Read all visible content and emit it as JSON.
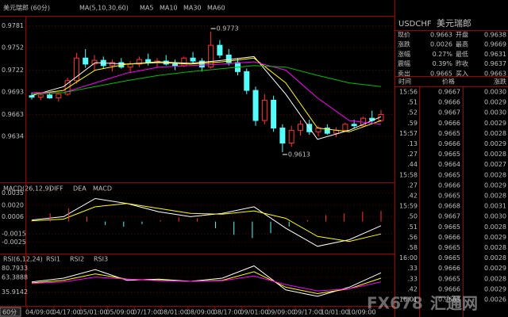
{
  "main": {
    "title": "美元瑞郎 (60分)",
    "indicator": "MA(5,10,30,60)",
    "ylim": [
      0.9575,
      0.9792
    ],
    "yticks": [
      0.9781,
      0.9752,
      0.9722,
      0.9693,
      0.9663,
      0.9634
    ],
    "up_color": "#ff3232",
    "down_color": "#54fcfc",
    "candles": [
      [
        0.9688,
        0.9692,
        0.9683,
        0.9686
      ],
      [
        0.9686,
        0.969,
        0.9682,
        0.9689
      ],
      [
        0.9689,
        0.9693,
        0.9684,
        0.9685
      ],
      [
        0.9685,
        0.9691,
        0.968,
        0.969
      ],
      [
        0.969,
        0.9712,
        0.9688,
        0.9708
      ],
      [
        0.9708,
        0.9745,
        0.9704,
        0.9738
      ],
      [
        0.9738,
        0.975,
        0.9725,
        0.973
      ],
      [
        0.973,
        0.9742,
        0.9722,
        0.9735
      ],
      [
        0.9735,
        0.974,
        0.9724,
        0.9728
      ],
      [
        0.9728,
        0.9736,
        0.972,
        0.9732
      ],
      [
        0.9732,
        0.9738,
        0.9724,
        0.9726
      ],
      [
        0.9726,
        0.9734,
        0.9718,
        0.973
      ],
      [
        0.973,
        0.974,
        0.9726,
        0.9736
      ],
      [
        0.9736,
        0.9744,
        0.9728,
        0.9732
      ],
      [
        0.9732,
        0.9738,
        0.9725,
        0.9734
      ],
      [
        0.9734,
        0.9742,
        0.9728,
        0.973
      ],
      [
        0.973,
        0.9736,
        0.9722,
        0.9728
      ],
      [
        0.9728,
        0.974,
        0.9726,
        0.9738
      ],
      [
        0.9738,
        0.9746,
        0.973,
        0.9734
      ],
      [
        0.9734,
        0.9738,
        0.972,
        0.9726
      ],
      [
        0.9726,
        0.9773,
        0.9724,
        0.9755
      ],
      [
        0.9755,
        0.9762,
        0.9738,
        0.9742
      ],
      [
        0.9742,
        0.975,
        0.9728,
        0.9732
      ],
      [
        0.9732,
        0.9738,
        0.9715,
        0.972
      ],
      [
        0.972,
        0.9724,
        0.969,
        0.9695
      ],
      [
        0.9695,
        0.97,
        0.9648,
        0.9655
      ],
      [
        0.9655,
        0.969,
        0.965,
        0.9682
      ],
      [
        0.9682,
        0.9688,
        0.964,
        0.9645
      ],
      [
        0.9645,
        0.965,
        0.9613,
        0.9625
      ],
      [
        0.9625,
        0.9648,
        0.962,
        0.9642
      ],
      [
        0.9642,
        0.9655,
        0.9635,
        0.965
      ],
      [
        0.965,
        0.9656,
        0.9636,
        0.964
      ],
      [
        0.964,
        0.9648,
        0.9634,
        0.9645
      ],
      [
        0.9645,
        0.965,
        0.9636,
        0.9638
      ],
      [
        0.9638,
        0.9646,
        0.9633,
        0.9642
      ],
      [
        0.9642,
        0.9652,
        0.964,
        0.965
      ],
      [
        0.965,
        0.9656,
        0.9644,
        0.9648
      ],
      [
        0.9648,
        0.966,
        0.9646,
        0.9658
      ],
      [
        0.9658,
        0.9668,
        0.9652,
        0.9655
      ],
      [
        0.9655,
        0.9669,
        0.9653,
        0.9663
      ]
    ],
    "ma_lines": [
      {
        "name": "MA5",
        "color": "#ffffff",
        "values": [
          0.9688,
          0.97,
          0.9732,
          0.973,
          0.9733,
          0.9731,
          0.9735,
          0.974,
          0.969,
          0.963,
          0.9642,
          0.966
        ]
      },
      {
        "name": "MA10",
        "color": "#ffff00",
        "values": [
          0.969,
          0.9695,
          0.9722,
          0.973,
          0.9732,
          0.973,
          0.9733,
          0.9738,
          0.9705,
          0.9645,
          0.964,
          0.9655
        ]
      },
      {
        "name": "MA30",
        "color": "#ff00ff",
        "values": [
          0.9692,
          0.9692,
          0.9705,
          0.9718,
          0.9726,
          0.9728,
          0.973,
          0.9733,
          0.9722,
          0.9685,
          0.9655,
          0.965
        ]
      },
      {
        "name": "MA60",
        "color": "#00c000",
        "values": [
          0.969,
          0.9692,
          0.97,
          0.9708,
          0.9715,
          0.972,
          0.9724,
          0.9728,
          0.9726,
          0.9715,
          0.9705,
          0.97
        ]
      }
    ],
    "annotations": [
      0.9773,
      0.9613
    ]
  },
  "macd": {
    "indicator": "MACD(26,12,9)",
    "ylim": [
      -0.0035,
      0.0042
    ],
    "yticks": [
      0.0035,
      {
        "value": 0.002,
        "label": "0.0020"
      },
      0.0006,
      -0.0015,
      -0.0025
    ],
    "neg_color": "#54fcfc",
    "series": [
      {
        "name": "DIFF",
        "color": "#ffffff",
        "values": [
          0.0002,
          0.0006,
          0.0028,
          0.0022,
          0.0012,
          0.0006,
          0.001,
          0.0018,
          -0.0008,
          -0.003,
          -0.0022,
          -0.0005
        ]
      },
      {
        "name": "DEA",
        "color": "#ffff00",
        "values": [
          0.0001,
          0.0003,
          0.0018,
          0.0022,
          0.0016,
          0.001,
          0.0009,
          0.0013,
          0.0004,
          -0.0018,
          -0.0024,
          -0.0015
        ]
      },
      {
        "name": "MACD",
        "color": "#ff3232",
        "type": "bar",
        "values": [
          0.0002,
          0.001,
          0.0016,
          0.0006,
          -0.0004,
          -0.0006,
          -0.0003,
          0.0002,
          0.0005,
          0.0004,
          -0.0008,
          -0.0016,
          -0.002,
          -0.0014,
          -0.0006,
          0.0002,
          0.0008,
          0.001,
          0.0012,
          0.0013
        ]
      }
    ]
  },
  "rsi": {
    "indicator": "RSI(6,12,24)",
    "ylim": [
      10,
      105
    ],
    "yticks": [
      80.7933,
      63.3888,
      35.9142
    ],
    "series": [
      {
        "name": "RSI1",
        "color": "#ffffff",
        "values": [
          55,
          62,
          78,
          58,
          60,
          56,
          62,
          85,
          40,
          28,
          45,
          72
        ]
      },
      {
        "name": "RSI2",
        "color": "#ffff00",
        "values": [
          53,
          58,
          70,
          60,
          58,
          56,
          58,
          74,
          45,
          33,
          42,
          62
        ]
      },
      {
        "name": "RSI3",
        "color": "#ff00ff",
        "values": [
          52,
          55,
          64,
          60,
          57,
          56,
          57,
          66,
          50,
          38,
          42,
          55
        ]
      }
    ]
  },
  "period": "60分",
  "xlabels": [
    "04/09:00",
    "04/17:00",
    "05/01:00",
    "05/09:00",
    "07/17:00",
    "08/01:00",
    "08/09:00",
    "08/17:00",
    "09/01:00",
    "09/09:00",
    "09/17:00",
    "10/01:00",
    "10/09:00"
  ],
  "quote": {
    "symbol": "USDCHF",
    "name": "美元瑞郎",
    "rows": [
      [
        "现价",
        "0.9663",
        "开盘",
        "0.9638"
      ],
      [
        "涨跌",
        "0.0026",
        "最高",
        "0.9669"
      ],
      [
        "涨幅",
        "0.27%",
        "最低",
        "0.9631"
      ],
      [
        "震幅",
        "0.39%",
        "昨收",
        "0.9637"
      ],
      [
        "卖出",
        "0.9665",
        "买入",
        "0.9663"
      ]
    ]
  },
  "trades": {
    "headers": [
      "时间",
      "价格",
      "涨跌"
    ],
    "rows": [
      [
        "15:56",
        "0.9667",
        "0.0030"
      ],
      [
        ".51",
        "0.9666",
        "0.0029"
      ],
      [
        ".52",
        "0.9667",
        "0.0030"
      ],
      [
        ".59",
        "0.9666",
        "0.0029"
      ],
      [
        "15:57",
        "0.9665",
        "0.0028"
      ],
      [
        ".13",
        "0.9666",
        "0.0029"
      ],
      [
        ".27",
        "0.9665",
        "0.0028"
      ],
      [
        ".44",
        "0.9664",
        "0.0027"
      ],
      [
        "15:58",
        "0.9665",
        "0.0028"
      ],
      [
        ".27",
        "0.9666",
        "0.0029"
      ],
      [
        ".42",
        "0.9665",
        "0.0028"
      ],
      [
        "15:59",
        "0.9668",
        "0.0031"
      ],
      [
        ".50",
        "0.9667",
        "0.0030"
      ],
      [
        ".51",
        "0.9665",
        "0.0028"
      ],
      [
        ".56",
        "0.9666",
        "0.0029"
      ],
      [
        ".58",
        "0.9665",
        "0.0028"
      ],
      [
        "16:00",
        "0.9665",
        "0.0028"
      ],
      [
        ".33",
        "0.9666",
        "0.0029"
      ],
      [
        ".33",
        "0.9665",
        "0.0028"
      ],
      [
        ".42",
        "0.9666",
        "0.0029"
      ],
      [
        "16:01",
        "0.9663",
        "0.0026"
      ]
    ]
  },
  "watermark": [
    "FX678",
    "汇通网"
  ]
}
